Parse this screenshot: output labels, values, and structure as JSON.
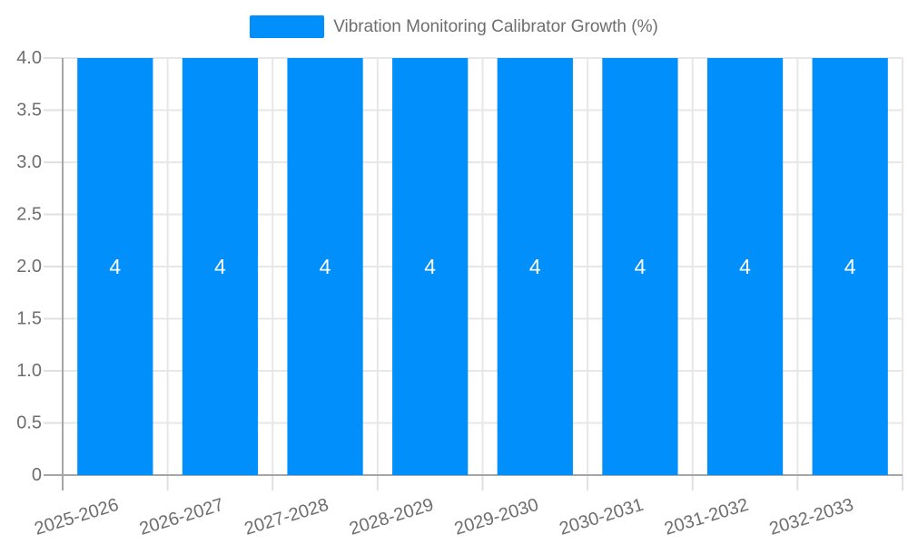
{
  "legend": {
    "label": "Vibration Monitoring Calibrator Growth (%)"
  },
  "chart_data": {
    "type": "bar",
    "title": "Vibration Monitoring Calibrator Growth (%)",
    "categories": [
      "2025-2026",
      "2026-2027",
      "2027-2028",
      "2028-2029",
      "2029-2030",
      "2030-2031",
      "2031-2032",
      "2032-2033"
    ],
    "values": [
      4,
      4,
      4,
      4,
      4,
      4,
      4,
      4
    ],
    "bar_labels": [
      "4",
      "4",
      "4",
      "4",
      "4",
      "4",
      "4",
      "4"
    ],
    "xlabel": "",
    "ylabel": "",
    "ylim": [
      0,
      4.0
    ],
    "ytick_step": 0.5,
    "ytick_labels": [
      "0",
      "0.5",
      "1.0",
      "1.5",
      "2.0",
      "2.5",
      "3.0",
      "3.5",
      "4.0"
    ],
    "grid": true,
    "legend_position": "top",
    "colors": {
      "bar": "#008FFB",
      "grid": "#e7e7e7",
      "tick": "#e0e0e0",
      "axis": "#a6a6a6",
      "tick_text": "#6e6e6e",
      "legend_text": "#6e6e6e",
      "data_label": "#ffffff"
    }
  }
}
